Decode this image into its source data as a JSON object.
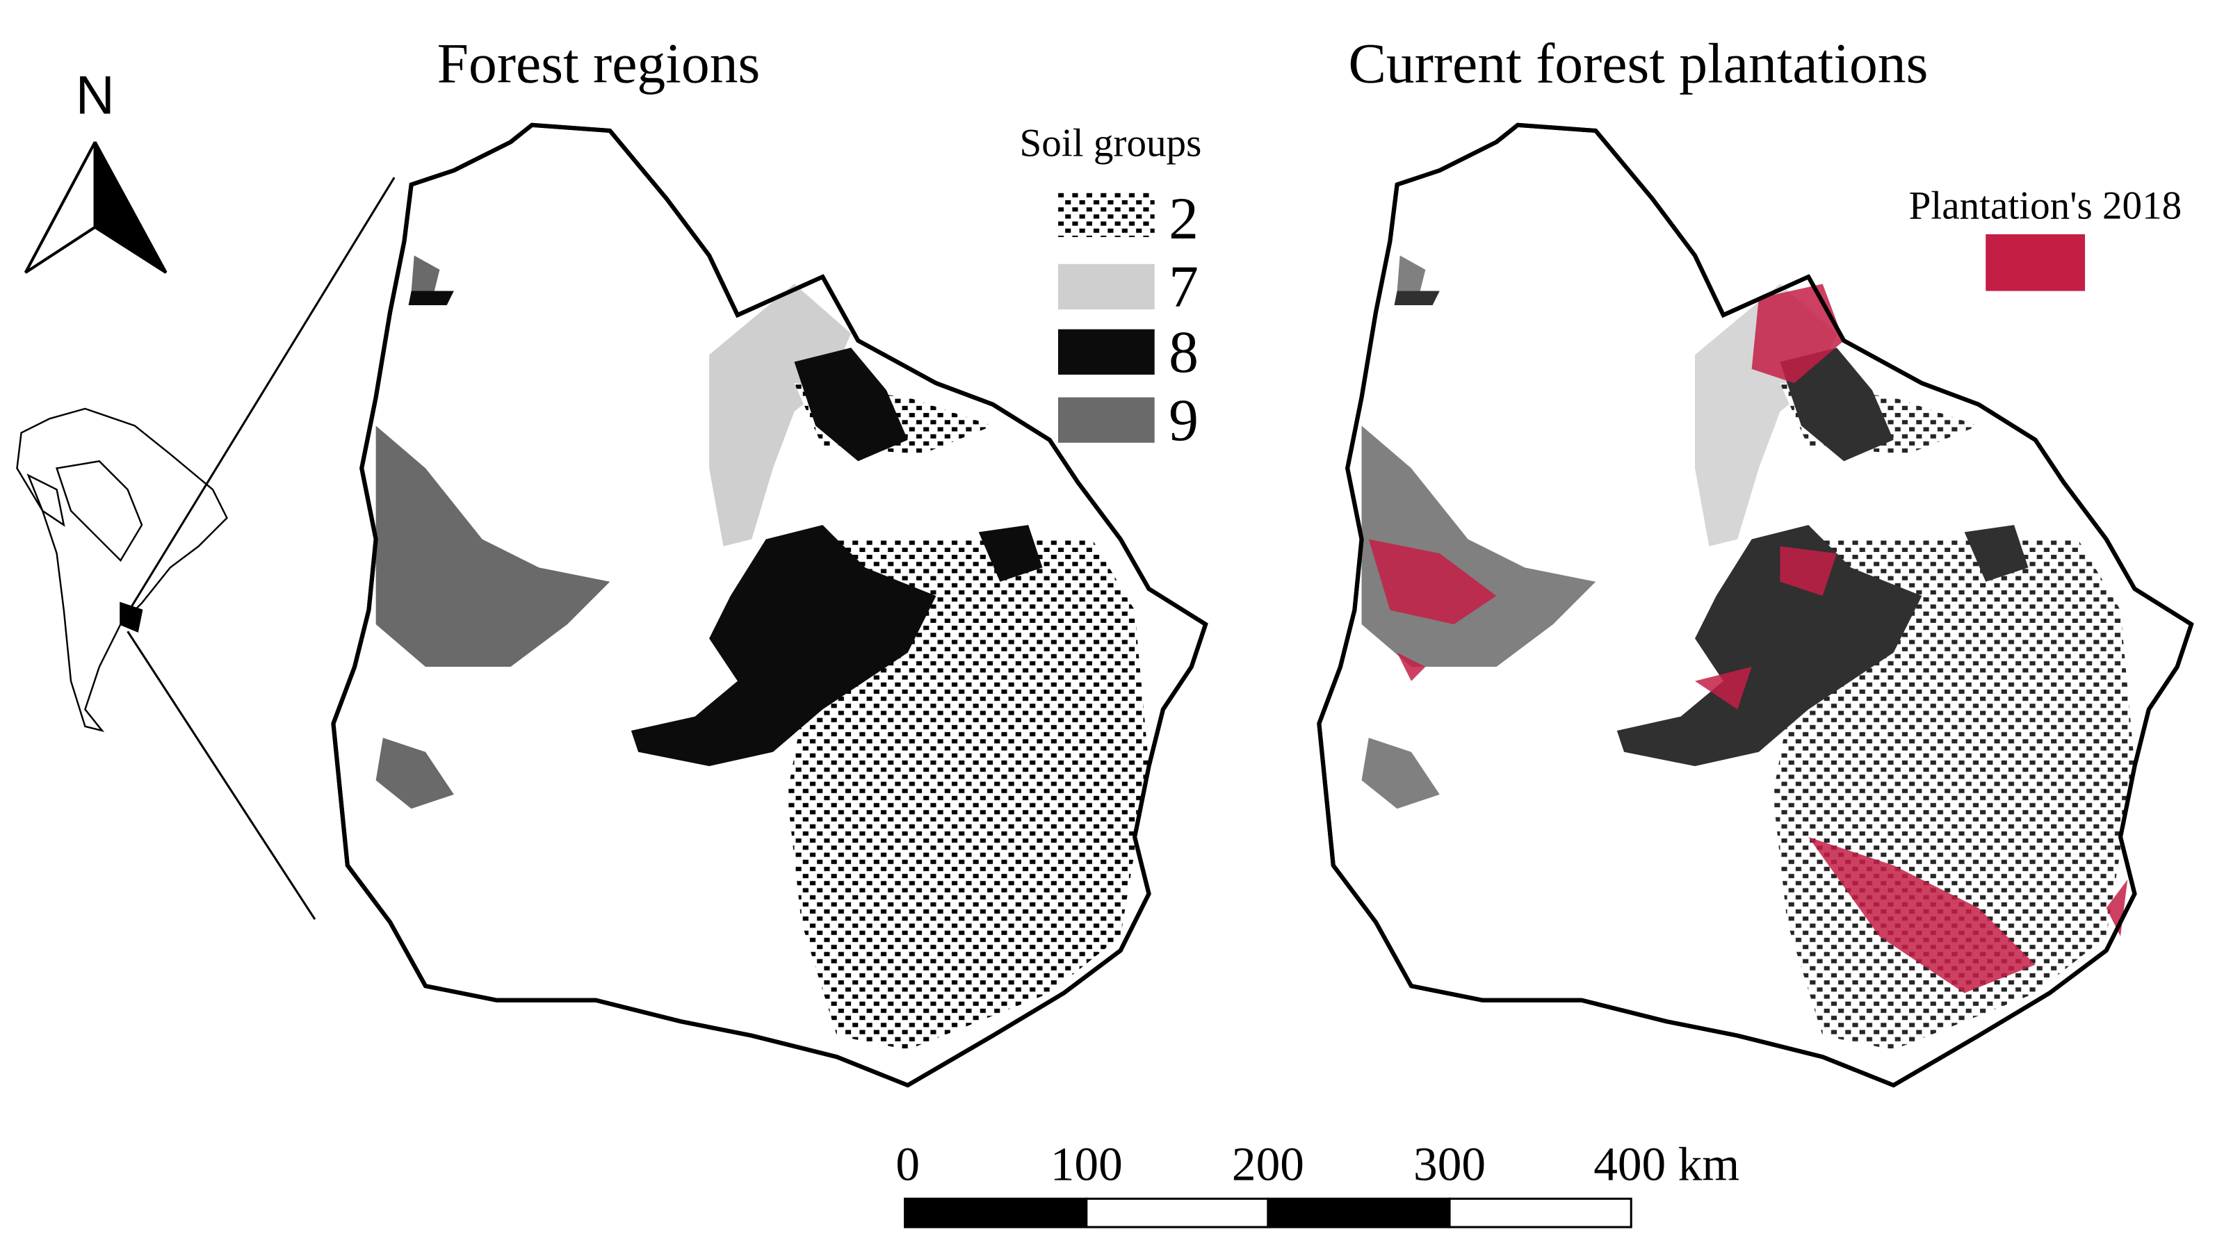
{
  "maps": [
    {
      "title": "Forest regions",
      "legend": {
        "title": "Soil groups",
        "items": [
          {
            "label": "2"
          },
          {
            "label": "7"
          },
          {
            "label": "8"
          },
          {
            "label": "9"
          }
        ]
      }
    },
    {
      "title": "Current forest plantations",
      "legend": {
        "items": [
          {
            "label": "Plantation's 2018"
          }
        ]
      }
    }
  ],
  "north_arrow": {
    "label": "N"
  },
  "scale_bar": {
    "labels": [
      "0",
      "100",
      "200",
      "300",
      "400 km"
    ]
  }
}
